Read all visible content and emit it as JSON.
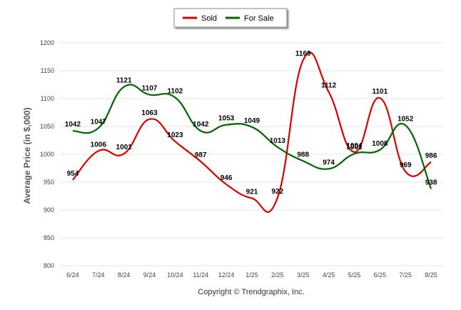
{
  "chart_data": {
    "type": "line",
    "categories": [
      "6/24",
      "7/24",
      "8/24",
      "9/24",
      "10/24",
      "11/24",
      "12/24",
      "1/25",
      "2/25",
      "3/25",
      "4/25",
      "5/25",
      "6/25",
      "7/25",
      "8/25"
    ],
    "series": [
      {
        "name": "Sold",
        "color": "#dd0000",
        "values": [
          954,
          1006,
          1001,
          1063,
          1023,
          987,
          946,
          921,
          922,
          1169,
          1112,
          1004,
          1101,
          969,
          986
        ]
      },
      {
        "name": "For Sale",
        "color": "#006600",
        "values": [
          1042,
          1047,
          1121,
          1107,
          1102,
          1042,
          1053,
          1049,
          1013,
          988,
          974,
          1001,
          1008,
          1052,
          938
        ]
      }
    ],
    "ylabel": "Average Price (in $,000)",
    "xlabel": "",
    "ylim": [
      800,
      1200
    ],
    "yticks": [
      "800",
      "850",
      "900",
      "950",
      "1000",
      "1050",
      "1100",
      "1150",
      "1200"
    ],
    "grid": true,
    "legend_position": "top-center"
  },
  "footer": "Copyright © Trendgraphix, Inc."
}
